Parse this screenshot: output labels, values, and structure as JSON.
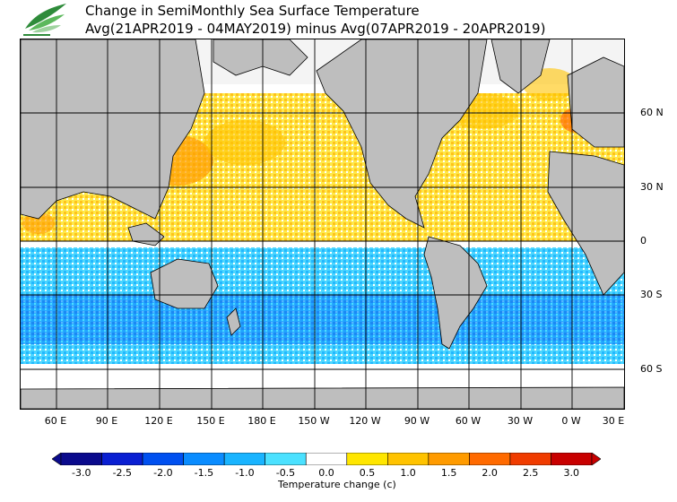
{
  "header": {
    "title_line1": "Change in SemiMonthly Sea Surface Temperature",
    "title_line2": "Avg(21APR2019 - 04MAY2019) minus Avg(07APR2019 - 20APR2019)"
  },
  "axes": {
    "lat_labels": [
      "60 N",
      "30 N",
      "0",
      "30 S",
      "60 S"
    ],
    "lon_labels": [
      "60 E",
      "90 E",
      "120 E",
      "150 E",
      "180 E",
      "150 W",
      "120 W",
      "90 W",
      "60 W",
      "30 W",
      "0 W",
      "30 E"
    ]
  },
  "colorbar": {
    "labels": [
      "-3.0",
      "-2.5",
      "-2.0",
      "-1.5",
      "-1.0",
      "-0.5",
      "0.0",
      "0.5",
      "1.0",
      "1.5",
      "2.0",
      "2.5",
      "3.0"
    ],
    "colors": [
      "#0a0a8c",
      "#0a1fd2",
      "#0050f0",
      "#0a8cff",
      "#19b4ff",
      "#4be1ff",
      "#ffffff",
      "#ffe600",
      "#ffc300",
      "#ff9b00",
      "#ff6a00",
      "#f03c00",
      "#c80000"
    ],
    "unit_label": "Temperature change  (c)"
  },
  "palette": {
    "land": "#bebebe",
    "ice": "#d8d8d8",
    "grid": "#000000"
  }
}
